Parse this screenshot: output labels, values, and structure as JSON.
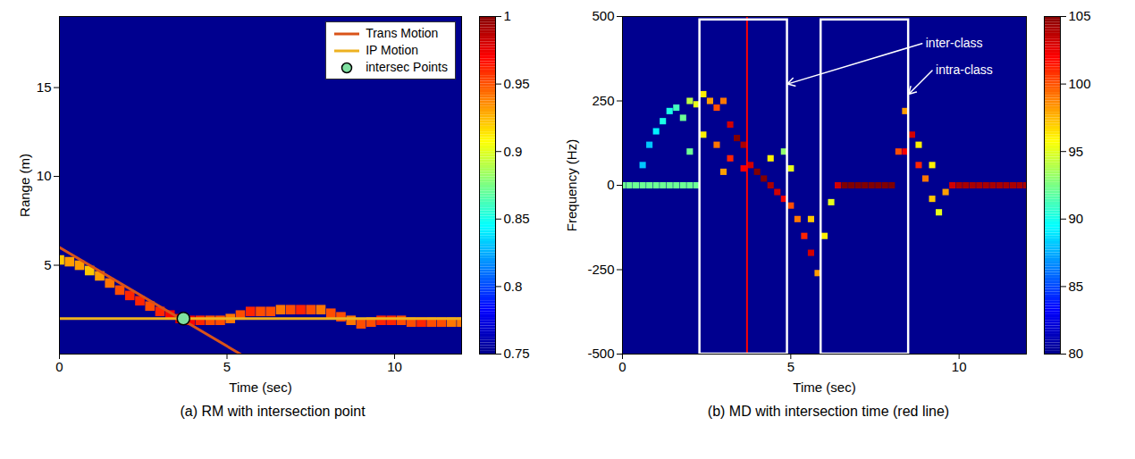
{
  "chart_data": [
    {
      "type": "heatmap",
      "caption": "(a) RM with intersection point",
      "x_label": "Time (sec)",
      "y_label": "Range (m)",
      "xlim": [
        0,
        12
      ],
      "xticks": [
        0,
        5,
        10
      ],
      "ylim": [
        0,
        19
      ],
      "yticks": [
        5,
        10,
        15
      ],
      "colorbar": {
        "lim": [
          0.75,
          1
        ],
        "ticks": [
          0.75,
          0.8,
          0.85,
          0.9,
          0.95,
          1
        ]
      },
      "cells": [
        [
          0,
          5.3,
          0.92
        ],
        [
          0.3,
          5.2,
          0.93
        ],
        [
          0.6,
          5.0,
          0.93
        ],
        [
          0.9,
          4.7,
          0.92
        ],
        [
          1.2,
          4.4,
          0.93
        ],
        [
          1.5,
          4.0,
          0.94
        ],
        [
          1.8,
          3.6,
          0.95
        ],
        [
          2.1,
          3.3,
          0.96
        ],
        [
          2.4,
          3.0,
          0.96
        ],
        [
          2.7,
          2.7,
          0.95
        ],
        [
          3.0,
          2.4,
          0.96
        ],
        [
          3.3,
          2.2,
          0.97
        ],
        [
          3.6,
          2.0,
          0.98
        ],
        [
          3.9,
          1.9,
          0.97
        ],
        [
          4.2,
          1.9,
          0.96
        ],
        [
          4.5,
          1.9,
          0.95
        ],
        [
          4.8,
          1.9,
          0.95
        ],
        [
          5.1,
          2.0,
          0.94
        ],
        [
          5.4,
          2.2,
          0.95
        ],
        [
          5.7,
          2.4,
          0.96
        ],
        [
          6.0,
          2.4,
          0.95
        ],
        [
          6.3,
          2.4,
          0.95
        ],
        [
          6.6,
          2.5,
          0.94
        ],
        [
          6.9,
          2.5,
          0.95
        ],
        [
          7.2,
          2.5,
          0.96
        ],
        [
          7.5,
          2.5,
          0.95
        ],
        [
          7.8,
          2.5,
          0.94
        ],
        [
          8.1,
          2.3,
          0.95
        ],
        [
          8.4,
          2.1,
          0.95
        ],
        [
          8.7,
          1.9,
          0.94
        ],
        [
          9.0,
          1.7,
          0.95
        ],
        [
          9.3,
          1.8,
          0.95
        ],
        [
          9.6,
          1.9,
          0.96
        ],
        [
          9.9,
          1.9,
          0.96
        ],
        [
          10.2,
          1.9,
          0.95
        ],
        [
          10.5,
          1.8,
          0.95
        ],
        [
          10.8,
          1.8,
          0.96
        ],
        [
          11.1,
          1.8,
          0.95
        ],
        [
          11.4,
          1.8,
          0.95
        ],
        [
          11.7,
          1.8,
          0.94
        ],
        [
          12.0,
          1.8,
          0.94
        ]
      ],
      "series": [
        {
          "name": "Trans Motion",
          "type": "line",
          "color": "#d95319",
          "x": [
            0,
            5.4
          ],
          "values": [
            6,
            0
          ]
        },
        {
          "name": "IP Motion",
          "type": "line",
          "color": "#edb120",
          "x": [
            0,
            12
          ],
          "values": [
            2,
            2
          ]
        },
        {
          "name": "intersec Points",
          "type": "scatter",
          "marker": "circle",
          "color": "#7fe0a0",
          "x": [
            3.7
          ],
          "values": [
            2
          ]
        }
      ],
      "legend": "upper right"
    },
    {
      "type": "heatmap",
      "caption": "(b) MD with intersection time (red line)",
      "x_label": "Time (sec)",
      "y_label": "Frequency (Hz)",
      "xlim": [
        0,
        12
      ],
      "xticks": [
        0,
        5,
        10
      ],
      "ylim": [
        -500,
        500
      ],
      "yticks": [
        -500,
        -250,
        0,
        250,
        500
      ],
      "colorbar": {
        "lim": [
          80,
          105
        ],
        "ticks": [
          80,
          85,
          90,
          95,
          100,
          105
        ]
      },
      "cells": [
        [
          0,
          0,
          92
        ],
        [
          0.2,
          0,
          92
        ],
        [
          0.4,
          0,
          92
        ],
        [
          0.6,
          0,
          92
        ],
        [
          0.8,
          0,
          92
        ],
        [
          1.0,
          0,
          92
        ],
        [
          1.2,
          0,
          92
        ],
        [
          1.4,
          0,
          92
        ],
        [
          1.6,
          0,
          92
        ],
        [
          1.8,
          0,
          92
        ],
        [
          2.0,
          0,
          92
        ],
        [
          2.2,
          0,
          92
        ],
        [
          0.6,
          60,
          88
        ],
        [
          0.8,
          120,
          88
        ],
        [
          1.0,
          160,
          89
        ],
        [
          1.2,
          190,
          90
        ],
        [
          1.4,
          220,
          90
        ],
        [
          1.6,
          230,
          91
        ],
        [
          1.8,
          200,
          92
        ],
        [
          2.0,
          250,
          94
        ],
        [
          2.2,
          240,
          95
        ],
        [
          2.4,
          270,
          96
        ],
        [
          2.6,
          250,
          98
        ],
        [
          2.8,
          230,
          100
        ],
        [
          3.0,
          250,
          99
        ],
        [
          3.2,
          180,
          103
        ],
        [
          3.4,
          140,
          105
        ],
        [
          3.6,
          120,
          104
        ],
        [
          3.8,
          60,
          103
        ],
        [
          4.0,
          40,
          105
        ],
        [
          4.2,
          20,
          105
        ],
        [
          4.4,
          0,
          104
        ],
        [
          4.6,
          -20,
          103
        ],
        [
          4.8,
          -40,
          102
        ],
        [
          5.0,
          -60,
          100
        ],
        [
          5.2,
          -100,
          99
        ],
        [
          5.4,
          -150,
          101
        ],
        [
          5.6,
          -200,
          103
        ],
        [
          5.8,
          -260,
          98
        ],
        [
          6.0,
          -150,
          96
        ],
        [
          6.2,
          -50,
          95
        ],
        [
          6.4,
          0,
          103
        ],
        [
          6.6,
          0,
          105
        ],
        [
          6.8,
          0,
          105
        ],
        [
          7.0,
          0,
          105
        ],
        [
          7.2,
          0,
          105
        ],
        [
          7.4,
          0,
          105
        ],
        [
          7.6,
          0,
          105
        ],
        [
          7.8,
          0,
          105
        ],
        [
          8.0,
          0,
          105
        ],
        [
          8.2,
          100,
          100
        ],
        [
          8.4,
          220,
          98
        ],
        [
          8.6,
          150,
          103
        ],
        [
          8.8,
          60,
          101
        ],
        [
          9.0,
          20,
          99
        ],
        [
          9.2,
          -40,
          97
        ],
        [
          9.4,
          -80,
          95
        ],
        [
          9.6,
          -20,
          98
        ],
        [
          9.8,
          0,
          103
        ],
        [
          10.0,
          0,
          104
        ],
        [
          10.2,
          0,
          104
        ],
        [
          10.4,
          0,
          104
        ],
        [
          10.6,
          0,
          104
        ],
        [
          10.8,
          0,
          104
        ],
        [
          11.0,
          0,
          104
        ],
        [
          11.2,
          0,
          104
        ],
        [
          11.4,
          0,
          104
        ],
        [
          11.6,
          0,
          104
        ],
        [
          11.8,
          0,
          104
        ],
        [
          12.0,
          0,
          104
        ],
        [
          2.0,
          100,
          92
        ],
        [
          2.4,
          150,
          96
        ],
        [
          2.8,
          120,
          99
        ],
        [
          3.2,
          80,
          101
        ],
        [
          3.6,
          50,
          102
        ],
        [
          3.0,
          40,
          98
        ],
        [
          4.4,
          80,
          96
        ],
        [
          4.8,
          100,
          93
        ],
        [
          5.0,
          50,
          95
        ],
        [
          5.6,
          -100,
          97
        ],
        [
          8.4,
          100,
          102
        ],
        [
          8.8,
          120,
          96
        ],
        [
          9.2,
          60,
          96
        ]
      ],
      "intersection_time": {
        "value": 3.7,
        "color": "#ff0000"
      },
      "boxes": [
        {
          "x1": 2.3,
          "x2": 4.9,
          "y1": -500,
          "y2": 490,
          "color": "#ffffff"
        },
        {
          "x1": 5.9,
          "x2": 8.5,
          "y1": -500,
          "y2": 490,
          "color": "#ffffff"
        }
      ],
      "annotations": [
        {
          "text": "inter-class",
          "x": 8.9,
          "y": 420,
          "to": [
            4.9,
            300
          ],
          "color": "#ffffff"
        },
        {
          "text": "intra-class",
          "x": 9.2,
          "y": 340,
          "to": [
            8.5,
            270
          ],
          "color": "#ffffff"
        }
      ]
    }
  ]
}
